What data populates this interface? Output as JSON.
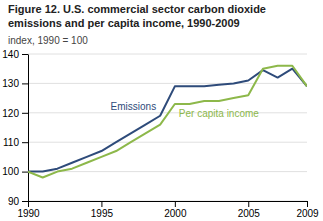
{
  "chart_data": {
    "type": "line",
    "title": "Figure 12. U.S. commercial sector carbon dioxide",
    "subtitle": "emissions and per capita income, 1990-2009",
    "y_label": "index, 1990 = 100",
    "x": [
      1990,
      1991,
      1992,
      1993,
      1994,
      1995,
      1996,
      1997,
      1998,
      1999,
      2000,
      2001,
      2002,
      2003,
      2004,
      2005,
      2006,
      2007,
      2008,
      2009
    ],
    "series": [
      {
        "name": "Emissions",
        "color": "#2E4B7A",
        "values": [
          100,
          100,
          101,
          103,
          105,
          107,
          110,
          113,
          116,
          119,
          129,
          129,
          129,
          129.5,
          130,
          131,
          134.5,
          132,
          135,
          129
        ]
      },
      {
        "name": "Per capita income",
        "color": "#8DB84A",
        "values": [
          100,
          98,
          100,
          101,
          103,
          105,
          107,
          110,
          113,
          116,
          123,
          123,
          124,
          124,
          125,
          126,
          135,
          136,
          136,
          129
        ]
      }
    ],
    "xlim": [
      1990,
      2009
    ],
    "ylim": [
      90,
      140
    ],
    "xticks": [
      1990,
      1995,
      2000,
      2005,
      2009
    ],
    "yticks": [
      90,
      100,
      110,
      120,
      130,
      140
    ],
    "grid": true
  }
}
